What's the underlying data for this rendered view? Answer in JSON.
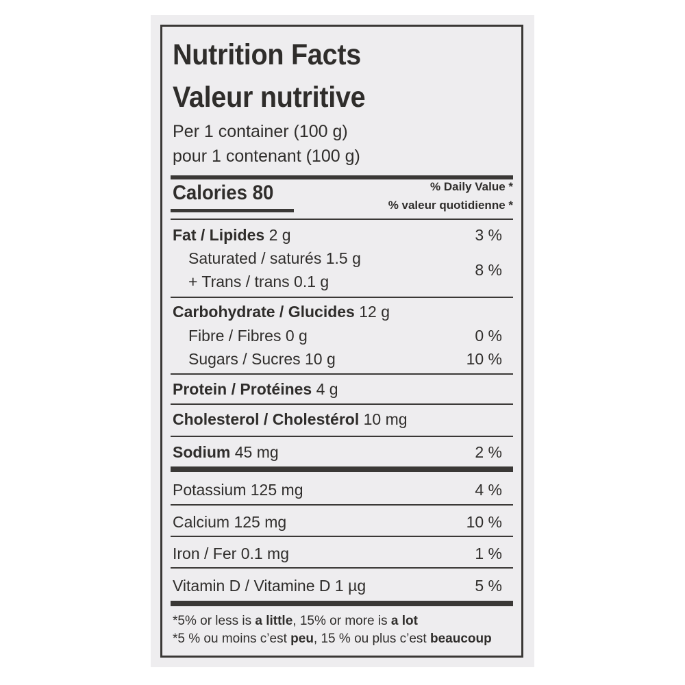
{
  "title_en": "Nutrition Facts",
  "title_fr": "Valeur nutritive",
  "serving_en": "Per 1 container (100 g)",
  "serving_fr": "pour 1 contenant (100 g)",
  "calories": {
    "label": "Calories",
    "value": "80"
  },
  "daily_value_en": "% Daily Value *",
  "daily_value_fr": "% valeur quotidienne *",
  "fat": {
    "label": "Fat / Lipides",
    "amount": "2 g",
    "dv": "3 %"
  },
  "saturated": {
    "label": "Saturated / saturés 1.5 g"
  },
  "trans": {
    "label": "+ Trans / trans 0.1 g",
    "dv": "8 %"
  },
  "carbohydrate": {
    "label": "Carbohydrate / Glucides",
    "amount": "12 g"
  },
  "fibre": {
    "label": "Fibre / Fibres 0 g",
    "dv": "0 %"
  },
  "sugars": {
    "label": "Sugars / Sucres 10 g",
    "dv": "10 %"
  },
  "protein": {
    "label": "Protein / Protéines",
    "amount": "4 g"
  },
  "cholesterol": {
    "label": "Cholesterol / Cholestérol",
    "amount": "10 mg"
  },
  "sodium": {
    "label": "Sodium",
    "amount": "45 mg",
    "dv": "2 %"
  },
  "potassium": {
    "label": "Potassium 125 mg",
    "dv": "4 %"
  },
  "calcium": {
    "label": "Calcium 125 mg",
    "dv": "10 %"
  },
  "iron": {
    "label": "Iron / Fer 0.1 mg",
    "dv": "1 %"
  },
  "vitamin_d": {
    "label": "Vitamin D / Vitamine D 1 µg",
    "dv": "5 %"
  },
  "footnote_en": {
    "a": "*5% or less is ",
    "b": "a little",
    "c": ", 15% or more is ",
    "d": "a lot"
  },
  "footnote_fr": {
    "a": "*5 % ou moins c’est ",
    "b": "peu",
    "c": ", 15 % ou plus c’est ",
    "d": "beaucoup"
  }
}
